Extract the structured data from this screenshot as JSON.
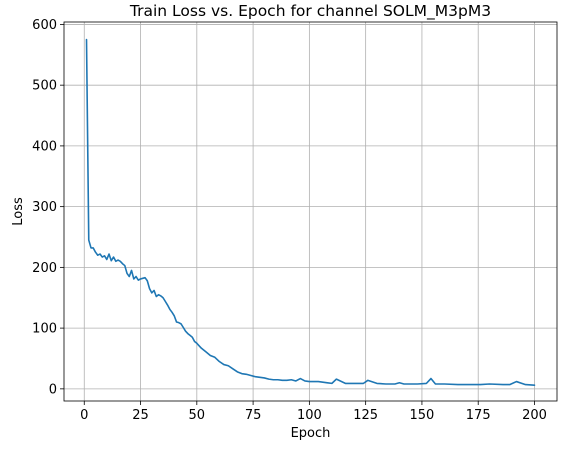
{
  "chart_data": {
    "type": "line",
    "title": "Train Loss vs. Epoch for channel SOLM_M3pM3",
    "xlabel": "Epoch",
    "ylabel": "Loss",
    "xlim": [
      -9,
      210
    ],
    "ylim": [
      -20,
      604
    ],
    "xticks": [
      0,
      25,
      50,
      75,
      100,
      125,
      150,
      175,
      200
    ],
    "yticks": [
      0,
      100,
      200,
      300,
      400,
      500,
      600
    ],
    "grid": true,
    "series_color": "#1f77b4",
    "series": [
      {
        "x": [
          1,
          2,
          3,
          4,
          5,
          6,
          7,
          8,
          9,
          10,
          11,
          12,
          13,
          14,
          15,
          16,
          17,
          18,
          19,
          20,
          21,
          22,
          23,
          24,
          25,
          26,
          27,
          28,
          29,
          30,
          31,
          32,
          33,
          34,
          35,
          36,
          37,
          38,
          39,
          40,
          41,
          42,
          43,
          44,
          45,
          46,
          47,
          48,
          49,
          50,
          52,
          54,
          56,
          58,
          60,
          62,
          64,
          66,
          68,
          70,
          72,
          74,
          76,
          78,
          80,
          82,
          84,
          86,
          88,
          90,
          92,
          94,
          96,
          98,
          100,
          104,
          108,
          110,
          112,
          116,
          120,
          124,
          126,
          130,
          134,
          138,
          140,
          142,
          144,
          148,
          152,
          154,
          156,
          160,
          166,
          170,
          176,
          180,
          186,
          189,
          192,
          196,
          200
        ],
        "values": [
          575,
          245,
          232,
          232,
          225,
          220,
          222,
          217,
          219,
          213,
          222,
          211,
          217,
          210,
          212,
          210,
          206,
          203,
          190,
          185,
          195,
          181,
          185,
          179,
          181,
          182,
          183,
          178,
          165,
          158,
          162,
          152,
          155,
          153,
          150,
          144,
          138,
          131,
          126,
          120,
          110,
          109,
          107,
          101,
          95,
          91,
          88,
          85,
          78,
          75,
          67,
          61,
          55,
          52,
          45,
          40,
          38,
          33,
          28,
          25,
          24,
          22,
          20,
          19,
          18,
          16,
          15,
          15,
          14,
          14,
          15,
          13,
          17,
          13,
          12,
          12,
          10,
          9,
          16,
          9,
          9,
          9,
          14,
          9,
          8,
          8,
          10,
          8,
          8,
          8,
          9,
          17,
          8,
          8,
          7,
          7,
          7,
          8,
          7,
          7,
          12,
          7,
          6
        ]
      }
    ]
  }
}
